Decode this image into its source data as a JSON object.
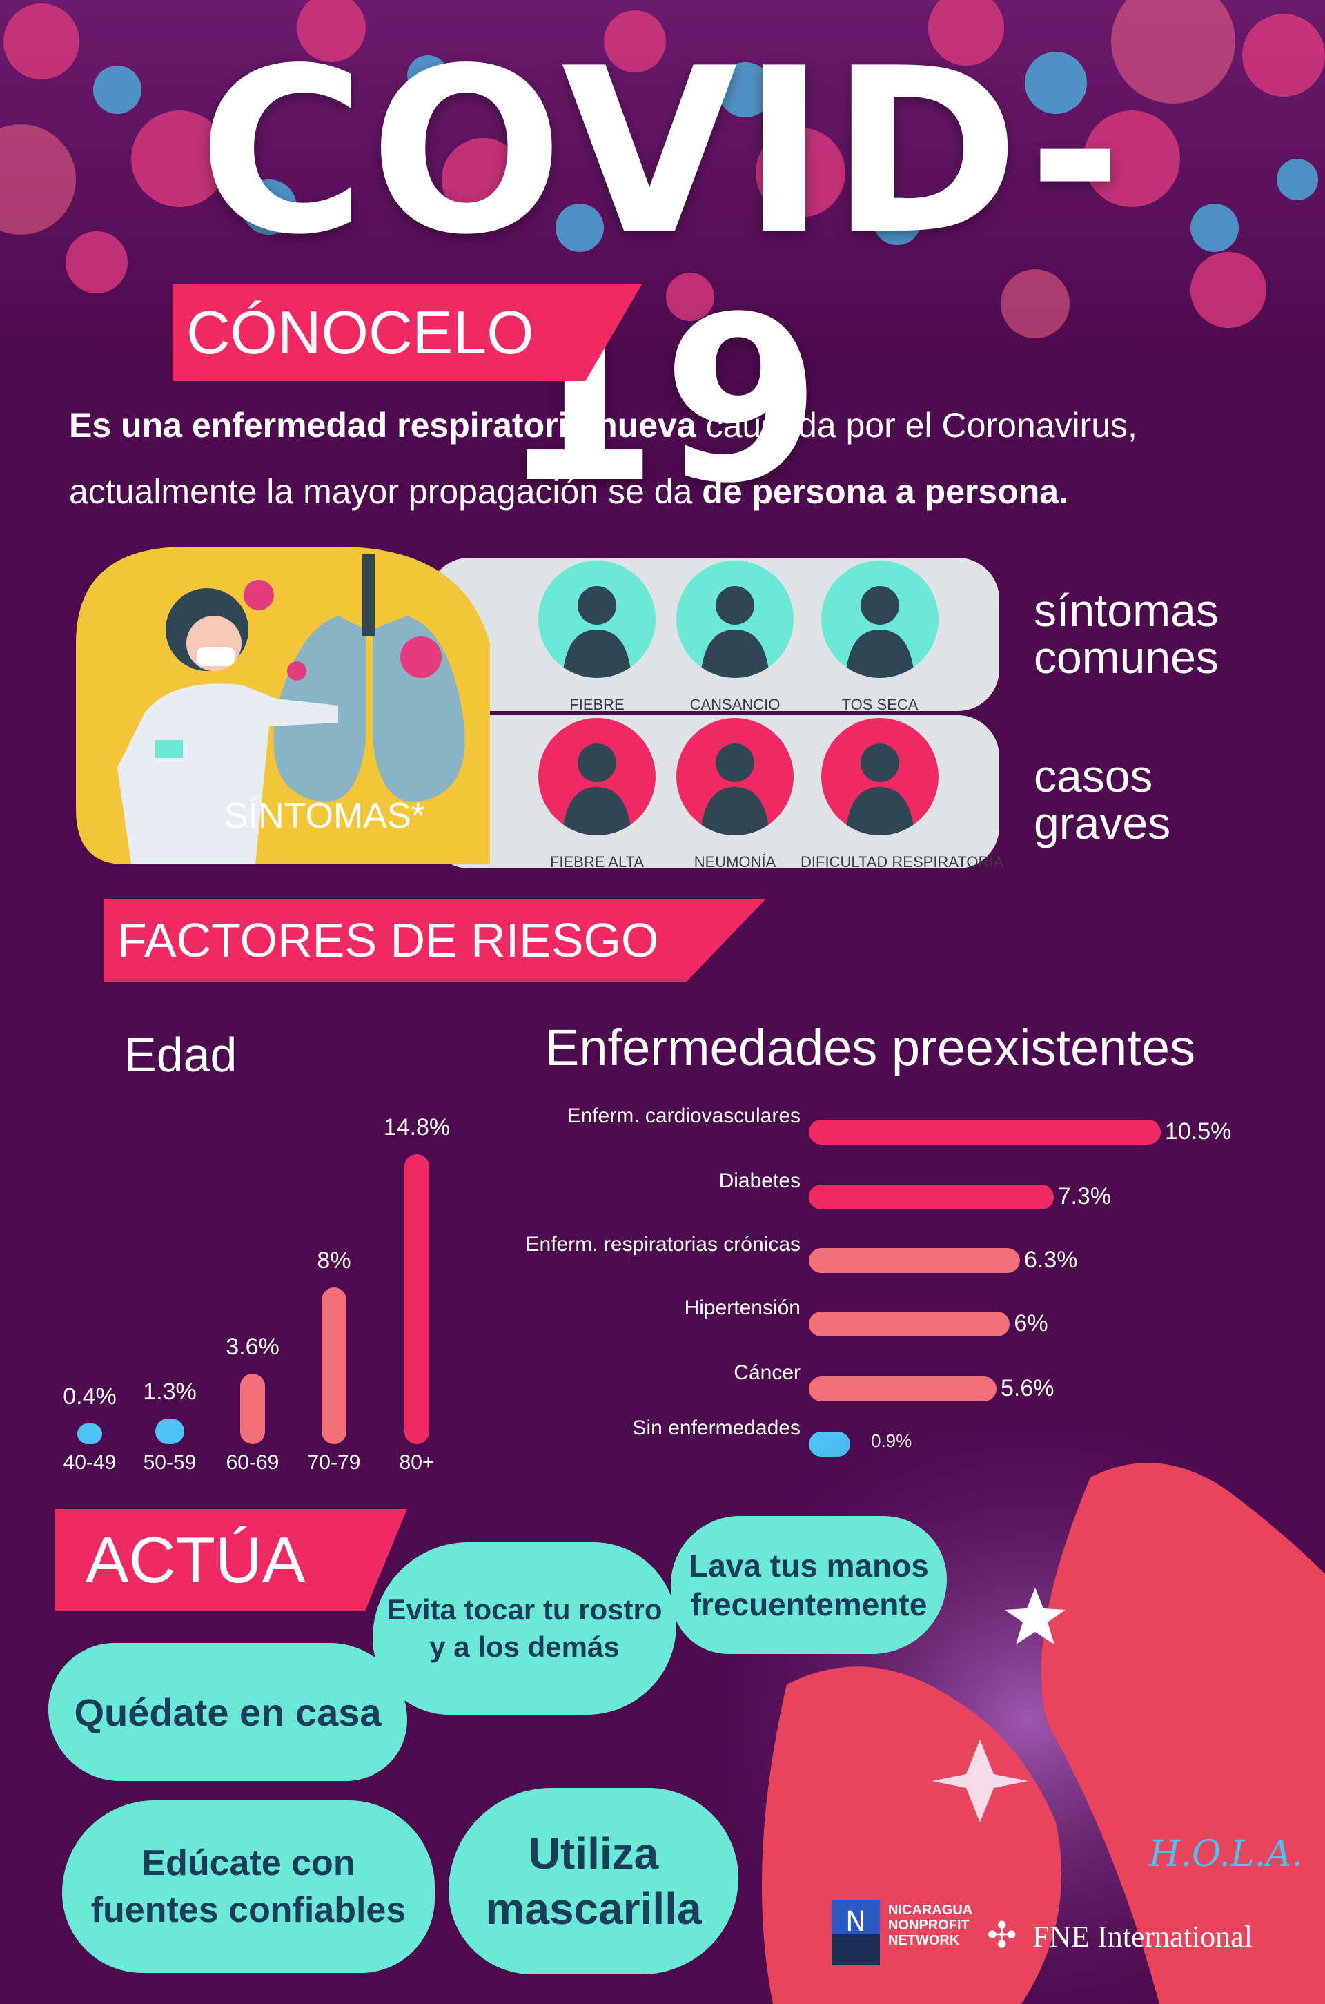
{
  "header": {
    "title": "COVID-19"
  },
  "conocelo": {
    "ribbon": "CÓNOCELO",
    "intro_bold_1": "Es una enfermedad respiratoria nueva",
    "intro_plain_1": " causada por el Coronavirus,",
    "intro_plain_2": "actualmente la mayor propagación se da ",
    "intro_bold_2": "de persona a persona."
  },
  "symptoms": {
    "panel_label": "SÍNTOMAS*",
    "common_title_1": "síntomas",
    "common_title_2": "comunes",
    "severe_title_1": "casos",
    "severe_title_2": "graves",
    "common": [
      {
        "label": "FIEBRE",
        "icon": "fever-person-icon"
      },
      {
        "label": "CANSANCIO",
        "icon": "tired-person-icon"
      },
      {
        "label": "TOS SECA",
        "icon": "cough-person-icon"
      }
    ],
    "severe": [
      {
        "label": "FIEBRE ALTA",
        "icon": "high-fever-person-icon"
      },
      {
        "label": "NEUMONÍA",
        "icon": "pneumonia-person-icon"
      },
      {
        "label": "DIFICULTAD RESPIRATORIA",
        "icon": "breathing-difficulty-person-icon"
      }
    ],
    "colors": {
      "common": "#6ce8d6",
      "severe": "#ef2a63",
      "panel": "#dfe3e6",
      "doctor_bg": "#f3c63a"
    }
  },
  "risk": {
    "ribbon": "FACTORES DE RIESGO",
    "age_title": "Edad",
    "disease_title": "Enfermedades preexistentes"
  },
  "chart_data": [
    {
      "type": "bar",
      "title": "Edad",
      "categories": [
        "40-49",
        "50-59",
        "60-69",
        "70-79",
        "80+"
      ],
      "values": [
        0.4,
        1.3,
        3.6,
        8,
        14.8
      ],
      "value_labels": [
        "0.4%",
        "1.3%",
        "3.6%",
        "8%",
        "14.8%"
      ],
      "colors": [
        "#4cc3f2",
        "#4cc3f2",
        "#f2707a",
        "#f2707a",
        "#ef2a63"
      ]
    },
    {
      "type": "bar",
      "orientation": "horizontal",
      "title": "Enfermedades preexistentes",
      "categories": [
        "Enferm. cardiovasculares",
        "Diabetes",
        "Enferm. respiratorias crónicas",
        "Hipertensión",
        "Cáncer",
        "Sin enfermedades"
      ],
      "values": [
        10.5,
        7.3,
        6.3,
        6,
        5.6,
        0.9
      ],
      "value_labels": [
        "10.5%",
        "7.3%",
        "6.3%",
        "6%",
        "5.6%",
        "0.9%"
      ],
      "colors": [
        "#ef2a63",
        "#ef2a63",
        "#f2707a",
        "#f2707a",
        "#f2707a",
        "#4cc3f2"
      ]
    }
  ],
  "actua": {
    "ribbon": "ACTÚA",
    "bubbles": [
      {
        "line1": "Quédate en casa",
        "line2": ""
      },
      {
        "line1": "Evita tocar tu rostro",
        "line2": "y a los demás"
      },
      {
        "line1": "Lava tus manos",
        "line2": "frecuentemente"
      },
      {
        "line1": "Edúcate con",
        "line2": "fuentes confiables"
      },
      {
        "line1": "Utiliza",
        "line2": "mascarilla"
      }
    ]
  },
  "footer": {
    "logo1_line1": "NICARAGUA",
    "logo1_line2": "NONPROFIT",
    "logo1_line3": "NETWORK",
    "logo2": "FNE International",
    "logo3": "H.O.L.A."
  }
}
